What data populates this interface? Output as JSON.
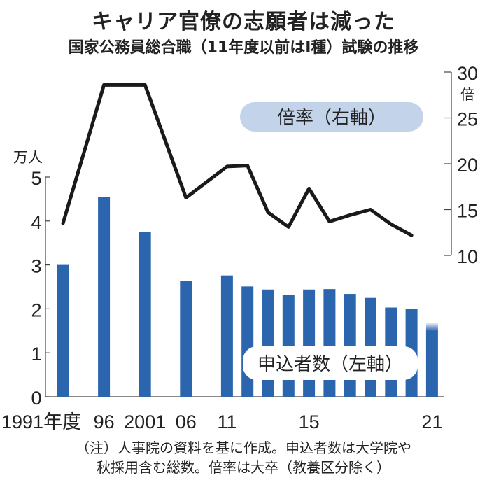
{
  "chart_data": {
    "type": "bar",
    "title": "キャリア官僚の志願者は減った",
    "subtitle": "国家公務員総合職（11年度以前はⅠ種）試験の推移",
    "categories": [
      "1991",
      "1996",
      "2001",
      "2006",
      "2011",
      "2012",
      "2013",
      "2014",
      "2015",
      "2016",
      "2017",
      "2018",
      "2019",
      "2020",
      "2021"
    ],
    "x_tick_labels": [
      {
        "year": "1991",
        "label": "1991年度"
      },
      {
        "year": "1996",
        "label": "96"
      },
      {
        "year": "2001",
        "label": "2001"
      },
      {
        "year": "2006",
        "label": "06"
      },
      {
        "year": "2011",
        "label": "11"
      },
      {
        "year": "2015",
        "label": "15"
      },
      {
        "year": "2021",
        "label": "21"
      }
    ],
    "series": [
      {
        "name": "申込者数（左軸）",
        "type": "bar",
        "axis": "left",
        "color": "#2b65ad",
        "values": [
          3.0,
          4.55,
          3.75,
          2.63,
          2.76,
          2.51,
          2.44,
          2.31,
          2.44,
          2.45,
          2.34,
          2.25,
          2.03,
          1.99,
          1.7
        ]
      },
      {
        "name": "倍率（右軸）",
        "type": "line",
        "axis": "right",
        "color": "#1a1a1a",
        "values": [
          13.5,
          28.6,
          28.6,
          16.3,
          19.7,
          19.8,
          14.7,
          13.1,
          17.3,
          13.7,
          14.4,
          15.0,
          13.4,
          12.2,
          null
        ]
      }
    ],
    "left_axis": {
      "unit": "万人",
      "ylim": [
        0,
        5
      ],
      "ticks": [
        0,
        1,
        2,
        3,
        4,
        5
      ]
    },
    "right_axis": {
      "unit": "倍",
      "ylim": [
        10,
        30
      ],
      "ticks": [
        10,
        15,
        20,
        25,
        30
      ]
    },
    "legend_line_label": "倍率（右軸）",
    "legend_bar_label": "申込者数（左軸）",
    "note_lines": [
      "（注）人事院の資料を基に作成。申込者数は大学院や",
      "秋採用含む総数。倍率は大卒（教養区分除く）"
    ]
  }
}
